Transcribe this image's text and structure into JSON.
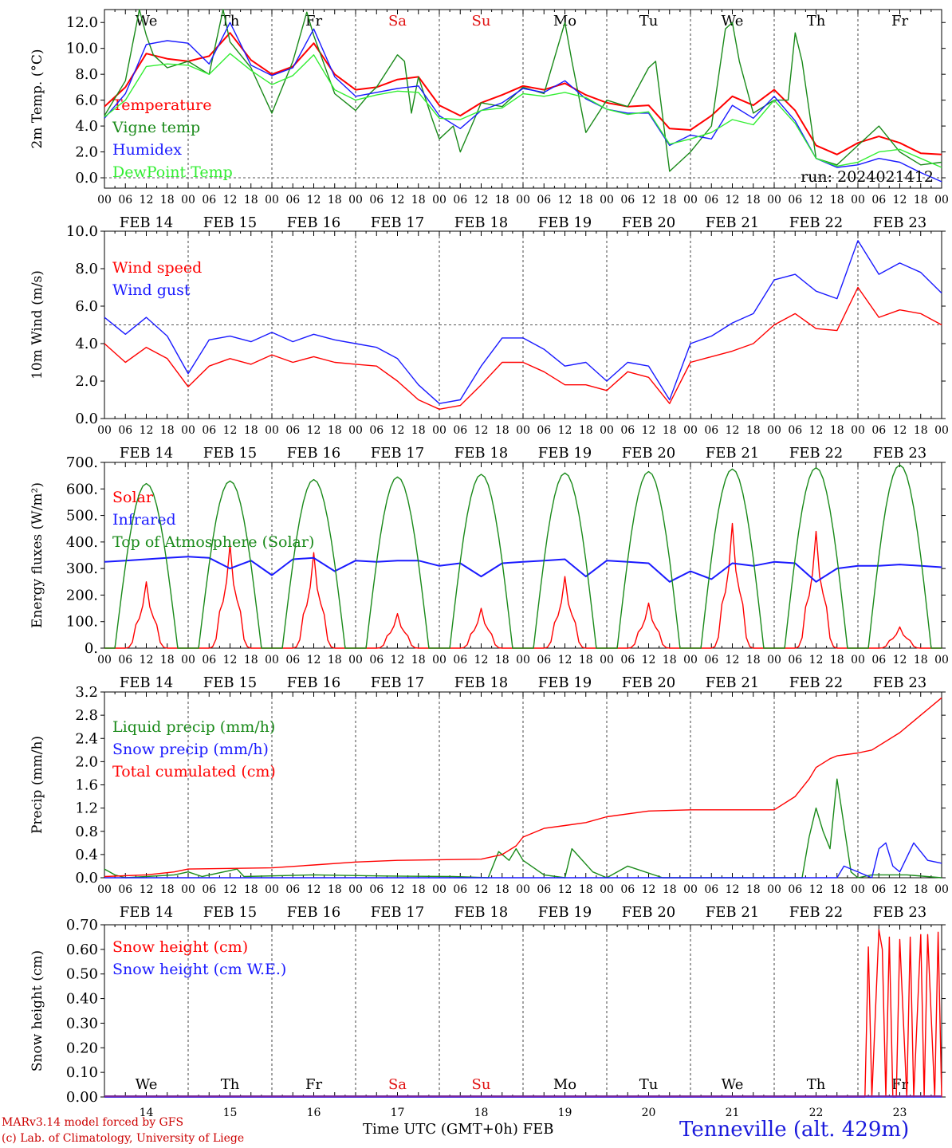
{
  "meta": {
    "run": "run: 2024021412",
    "model": "MARv3.14 model forced by GFS",
    "copyright": "(c) Lab. of Climatology, University of Liege",
    "xlabel": "Time UTC (GMT+0h)",
    "month": "FEB",
    "station": "Tenneville (alt. 429m)"
  },
  "time_axis": {
    "dates": [
      "FEB 14",
      "FEB 15",
      "FEB 16",
      "FEB 17",
      "FEB 18",
      "FEB 19",
      "FEB 20",
      "FEB 21",
      "FEB 22",
      "FEB 23"
    ],
    "weekdays": [
      "We",
      "Th",
      "Fr",
      "Sa",
      "Su",
      "Mo",
      "Tu",
      "We",
      "Th",
      "Fr"
    ],
    "weekend_flags": [
      false,
      false,
      false,
      true,
      true,
      false,
      false,
      false,
      false,
      false
    ],
    "hours": [
      "00",
      "06",
      "12",
      "18"
    ],
    "day_numbers": [
      "14",
      "15",
      "16",
      "17",
      "18",
      "19",
      "20",
      "21",
      "22",
      "23"
    ]
  },
  "colors": {
    "red": "#ff0000",
    "green": "#1a8a1a",
    "blue": "#1a1aff",
    "lightgreen": "#33ee33",
    "purple": "#7a2a9a"
  },
  "chart_data": [
    {
      "type": "line",
      "ylabel": "2m Temp. (°C)",
      "ylim": [
        -0.8,
        13.0
      ],
      "yticks": [
        0,
        2,
        4,
        6,
        8,
        10,
        12
      ],
      "ytick_labels": [
        "0.0",
        "2.0",
        "4.0",
        "6.0",
        "8.0",
        "10.0",
        "12.0"
      ],
      "ref_line": 0,
      "x_unit": "hours since FEB 14 00 UTC",
      "series": [
        {
          "name": "Temperature",
          "color": "#ff0000",
          "x": [
            0,
            6,
            12,
            18,
            24,
            30,
            36,
            42,
            48,
            54,
            60,
            66,
            72,
            78,
            84,
            90,
            96,
            102,
            108,
            114,
            120,
            126,
            132,
            138,
            144,
            150,
            156,
            162,
            168,
            174,
            180,
            186,
            192,
            198,
            204,
            210,
            216,
            222,
            228,
            234,
            240
          ],
          "y": [
            5.5,
            7.0,
            9.6,
            9.2,
            9.0,
            9.4,
            11.2,
            9.1,
            8.0,
            8.6,
            10.4,
            8.0,
            6.8,
            7.0,
            7.6,
            7.8,
            5.6,
            4.8,
            5.8,
            6.4,
            7.1,
            6.8,
            7.3,
            6.4,
            5.8,
            5.5,
            5.6,
            3.8,
            3.7,
            4.8,
            6.3,
            5.6,
            6.8,
            5.2,
            2.5,
            1.8,
            2.7,
            3.2,
            2.7,
            1.9,
            1.8
          ]
        },
        {
          "name": "Vigne temp",
          "color": "#1a8a1a",
          "x": [
            0,
            6,
            10,
            12,
            14,
            18,
            24,
            30,
            34,
            36,
            42,
            48,
            54,
            58,
            60,
            64,
            66,
            72,
            76,
            78,
            84,
            86,
            88,
            90,
            94,
            96,
            100,
            102,
            106,
            108,
            114,
            120,
            126,
            132,
            134,
            138,
            144,
            150,
            156,
            158,
            162,
            168,
            174,
            178,
            180,
            182,
            186,
            192,
            196,
            198,
            200,
            204,
            210,
            216,
            222,
            228,
            234,
            240
          ],
          "y": [
            4.8,
            7.5,
            13.0,
            11.0,
            9.5,
            8.5,
            9.0,
            8.0,
            13.0,
            10.5,
            8.5,
            5.0,
            9.0,
            12.8,
            11.0,
            8.0,
            6.5,
            5.2,
            6.5,
            7.0,
            9.5,
            9.0,
            5.0,
            7.8,
            4.5,
            3.0,
            4.0,
            2.0,
            4.5,
            5.8,
            5.5,
            7.0,
            6.5,
            12.0,
            9.0,
            3.5,
            6.0,
            5.5,
            8.5,
            9.0,
            0.5,
            2.0,
            4.0,
            11.5,
            12.0,
            9.0,
            5.0,
            6.0,
            6.0,
            11.2,
            9.0,
            1.5,
            1.0,
            2.5,
            4.0,
            2.0,
            1.0,
            1.2
          ]
        },
        {
          "name": "Humidex",
          "color": "#1a1aff",
          "x": [
            0,
            6,
            12,
            18,
            24,
            30,
            36,
            42,
            48,
            54,
            60,
            66,
            72,
            78,
            84,
            90,
            96,
            102,
            108,
            114,
            120,
            126,
            132,
            138,
            144,
            150,
            156,
            162,
            168,
            174,
            180,
            186,
            192,
            198,
            204,
            210,
            216,
            222,
            228,
            234,
            240
          ],
          "y": [
            4.6,
            6.5,
            10.3,
            10.6,
            10.4,
            8.8,
            12.0,
            8.7,
            7.9,
            8.5,
            11.5,
            7.8,
            6.3,
            6.6,
            6.9,
            7.1,
            4.8,
            3.8,
            5.2,
            5.8,
            6.9,
            6.6,
            7.5,
            6.1,
            5.3,
            5.0,
            5.0,
            2.5,
            3.3,
            3.0,
            5.6,
            4.6,
            6.3,
            4.4,
            1.5,
            0.8,
            1.0,
            1.5,
            1.2,
            0.4,
            -0.3
          ]
        },
        {
          "name": "DewPoint Temp",
          "color": "#33ee33",
          "x": [
            0,
            6,
            12,
            18,
            24,
            30,
            36,
            42,
            48,
            54,
            60,
            66,
            72,
            78,
            84,
            90,
            96,
            102,
            108,
            114,
            120,
            126,
            132,
            138,
            144,
            150,
            156,
            162,
            168,
            174,
            180,
            186,
            192,
            198,
            204,
            210,
            216,
            222,
            228,
            234,
            240
          ],
          "y": [
            4.7,
            6.0,
            8.6,
            8.8,
            8.7,
            8.0,
            9.6,
            8.3,
            7.2,
            7.9,
            9.5,
            6.8,
            6.0,
            6.4,
            6.7,
            6.6,
            4.6,
            4.5,
            5.2,
            5.4,
            6.5,
            6.3,
            6.6,
            6.2,
            5.3,
            4.9,
            5.1,
            2.6,
            3.0,
            3.5,
            4.5,
            4.1,
            6.0,
            4.2,
            1.5,
            0.9,
            1.2,
            2.0,
            2.2,
            1.5,
            0.8
          ]
        }
      ]
    },
    {
      "type": "line",
      "ylabel": "10m Wind (m/s)",
      "ylim": [
        0,
        10.0
      ],
      "yticks": [
        0,
        2,
        4,
        6,
        8,
        10
      ],
      "ytick_labels": [
        "0.0",
        "2.0",
        "4.0",
        "6.0",
        "8.0",
        "10.0"
      ],
      "ref_line": 5,
      "x_unit": "hours since FEB 14 00 UTC",
      "series": [
        {
          "name": "Wind speed",
          "color": "#ff0000",
          "x": [
            0,
            6,
            12,
            18,
            24,
            30,
            36,
            42,
            48,
            54,
            60,
            66,
            72,
            78,
            84,
            90,
            96,
            102,
            108,
            114,
            120,
            126,
            132,
            138,
            144,
            150,
            156,
            162,
            168,
            174,
            180,
            186,
            192,
            198,
            204,
            210,
            216,
            222,
            228,
            234,
            240
          ],
          "y": [
            4.0,
            3.0,
            3.8,
            3.2,
            1.7,
            2.8,
            3.2,
            2.9,
            3.4,
            3.0,
            3.3,
            3.0,
            2.9,
            2.8,
            2.0,
            1.0,
            0.5,
            0.7,
            1.8,
            3.0,
            3.0,
            2.5,
            1.8,
            1.8,
            1.5,
            2.5,
            2.2,
            0.8,
            3.0,
            3.3,
            3.6,
            4.0,
            5.0,
            5.6,
            4.8,
            4.7,
            7.0,
            5.4,
            5.8,
            5.6,
            5.0
          ]
        },
        {
          "name": "Wind gust",
          "color": "#1a1aff",
          "x": [
            0,
            6,
            12,
            18,
            24,
            30,
            36,
            42,
            48,
            54,
            60,
            66,
            72,
            78,
            84,
            90,
            96,
            102,
            108,
            114,
            120,
            126,
            132,
            138,
            144,
            150,
            156,
            162,
            168,
            174,
            180,
            186,
            192,
            198,
            204,
            210,
            216,
            222,
            228,
            234,
            240
          ],
          "y": [
            5.4,
            4.5,
            5.4,
            4.4,
            2.4,
            4.2,
            4.4,
            4.1,
            4.6,
            4.1,
            4.5,
            4.2,
            4.0,
            3.8,
            3.2,
            1.8,
            0.8,
            1.0,
            2.8,
            4.3,
            4.3,
            3.7,
            2.8,
            3.0,
            2.0,
            3.0,
            2.8,
            1.0,
            4.0,
            4.4,
            5.1,
            5.6,
            7.4,
            7.7,
            6.8,
            6.4,
            9.5,
            7.7,
            8.3,
            7.8,
            6.7
          ]
        }
      ]
    },
    {
      "type": "line",
      "ylabel": "Energy fluxes (W/m²)",
      "ylim": [
        0,
        700
      ],
      "yticks": [
        0,
        100,
        200,
        300,
        400,
        500,
        600,
        700
      ],
      "ytick_labels": [
        "0.",
        "100.",
        "200.",
        "300.",
        "400.",
        "500.",
        "600.",
        "700."
      ],
      "x_unit": "hours since FEB 14 00 UTC",
      "series": [
        {
          "name": "Solar",
          "color": "#ff0000",
          "day_peaks": [
            250,
            390,
            360,
            130,
            150,
            270,
            170,
            470,
            440,
            80
          ]
        },
        {
          "name": "Infrared",
          "color": "#1a1aff",
          "x": [
            0,
            6,
            12,
            18,
            24,
            30,
            36,
            42,
            48,
            54,
            60,
            66,
            72,
            78,
            84,
            90,
            96,
            102,
            108,
            114,
            120,
            126,
            132,
            138,
            144,
            150,
            156,
            162,
            168,
            174,
            180,
            186,
            192,
            198,
            204,
            210,
            216,
            222,
            228,
            234,
            240
          ],
          "y": [
            325,
            330,
            335,
            340,
            345,
            340,
            300,
            330,
            275,
            335,
            340,
            290,
            330,
            325,
            330,
            330,
            310,
            320,
            270,
            320,
            325,
            330,
            335,
            270,
            330,
            325,
            320,
            250,
            290,
            260,
            320,
            310,
            325,
            320,
            250,
            300,
            310,
            310,
            315,
            310,
            305
          ]
        },
        {
          "name": "Top of Atmosphere (Solar)",
          "color": "#1a8a1a",
          "day_peaks": [
            620,
            630,
            635,
            645,
            655,
            660,
            665,
            675,
            680,
            690
          ]
        }
      ]
    },
    {
      "type": "line",
      "ylabel": "Precip (mm/h)",
      "ylim": [
        0,
        3.2
      ],
      "yticks": [
        0,
        0.4,
        0.8,
        1.2,
        1.6,
        2.0,
        2.4,
        2.8,
        3.2
      ],
      "ytick_labels": [
        "0.0",
        "0.4",
        "0.8",
        "1.2",
        "1.6",
        "2.0",
        "2.4",
        "2.8",
        "3.2"
      ],
      "x_unit": "hours since FEB 14 00 UTC",
      "series": [
        {
          "name": "Liquid precip (mm/h)",
          "color": "#1a8a1a",
          "x": [
            0,
            3,
            6,
            12,
            20,
            24,
            28,
            38,
            40,
            60,
            80,
            100,
            110,
            113,
            116,
            118,
            120,
            126,
            132,
            134,
            140,
            144,
            150,
            160,
            200,
            202,
            204,
            206,
            208,
            210,
            214,
            216,
            220,
            230,
            240
          ],
          "y": [
            0.15,
            0.05,
            0.0,
            0.02,
            0.05,
            0.1,
            0.02,
            0.15,
            0.02,
            0.05,
            0.03,
            0.02,
            0.0,
            0.45,
            0.3,
            0.5,
            0.3,
            0.05,
            0.0,
            0.5,
            0.1,
            0.0,
            0.2,
            0.0,
            0.0,
            0.7,
            1.2,
            0.8,
            0.5,
            1.7,
            0.1,
            0.0,
            0.05,
            0.05,
            0.0
          ]
        },
        {
          "name": "Snow precip (mm/h)",
          "color": "#1a1aff",
          "x": [
            0,
            200,
            210,
            212,
            220,
            222,
            224,
            226,
            228,
            232,
            236,
            240
          ],
          "y": [
            0,
            0,
            0,
            0.2,
            0,
            0.5,
            0.6,
            0.2,
            0.1,
            0.6,
            0.3,
            0.25
          ]
        },
        {
          "name": "Total cumulated (cm)",
          "color": "#ff0000",
          "x": [
            0,
            12,
            20,
            24,
            36,
            48,
            60,
            72,
            84,
            96,
            108,
            114,
            118,
            120,
            126,
            132,
            138,
            144,
            156,
            168,
            180,
            192,
            198,
            202,
            204,
            208,
            210,
            216,
            220,
            228,
            234,
            240
          ],
          "y": [
            0.02,
            0.05,
            0.1,
            0.15,
            0.16,
            0.17,
            0.22,
            0.27,
            0.3,
            0.31,
            0.32,
            0.4,
            0.55,
            0.7,
            0.85,
            0.9,
            0.95,
            1.05,
            1.15,
            1.17,
            1.17,
            1.17,
            1.4,
            1.7,
            1.9,
            2.05,
            2.1,
            2.15,
            2.2,
            2.5,
            2.8,
            3.1
          ]
        }
      ]
    },
    {
      "type": "line",
      "ylabel": "Snow height (cm)",
      "ylim": [
        0,
        0.7
      ],
      "yticks": [
        0,
        0.1,
        0.2,
        0.3,
        0.4,
        0.5,
        0.6,
        0.7
      ],
      "ytick_labels": [
        "0.00",
        "0.10",
        "0.20",
        "0.30",
        "0.40",
        "0.50",
        "0.60",
        "0.70"
      ],
      "x_unit": "hours since FEB 14 00 UTC",
      "series": [
        {
          "name": "Snow height (cm)",
          "color": "#ff0000",
          "x": [
            0,
            218,
            219,
            220,
            222,
            223,
            224,
            225,
            226,
            227,
            228,
            230,
            231,
            232,
            234,
            235,
            236,
            238,
            239,
            240
          ],
          "y": [
            0,
            0,
            0.61,
            0,
            0.68,
            0.6,
            0,
            0.65,
            0,
            0,
            0.64,
            0,
            0.65,
            0,
            0.66,
            0,
            0.66,
            0,
            0.67,
            0
          ]
        },
        {
          "name": "Snow height (cm W.E.)",
          "color": "#1a1aff",
          "x": [
            0,
            240
          ],
          "y": [
            0,
            0
          ]
        }
      ]
    }
  ]
}
